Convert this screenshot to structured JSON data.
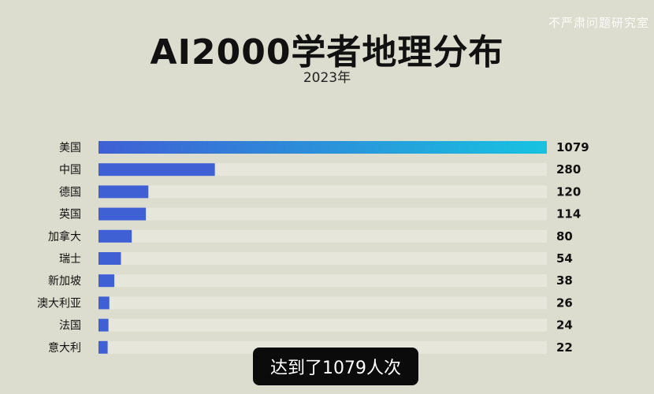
{
  "watermark": "不严肃问题研究室",
  "caption": "达到了1079人次",
  "chart_data": {
    "type": "bar",
    "orientation": "horizontal",
    "title": "AI2000学者地理分布",
    "subtitle": "2023年",
    "categories": [
      "美国",
      "中国",
      "德国",
      "英国",
      "加拿大",
      "瑞士",
      "新加坡",
      "澳大利亚",
      "法国",
      "意大利"
    ],
    "values": [
      1079,
      280,
      120,
      114,
      80,
      54,
      38,
      26,
      24,
      22
    ],
    "value_labels": [
      "1079",
      "280",
      "120",
      "114",
      "80",
      "54",
      "38",
      "26",
      "24",
      "22"
    ],
    "xlim": [
      0,
      1079
    ],
    "grid": false,
    "legend": "none",
    "colors": {
      "bar": "#3f5fd4",
      "bar_gradient_end": "#17c3e0",
      "track": "#e6e6da",
      "text": "#111111"
    }
  }
}
